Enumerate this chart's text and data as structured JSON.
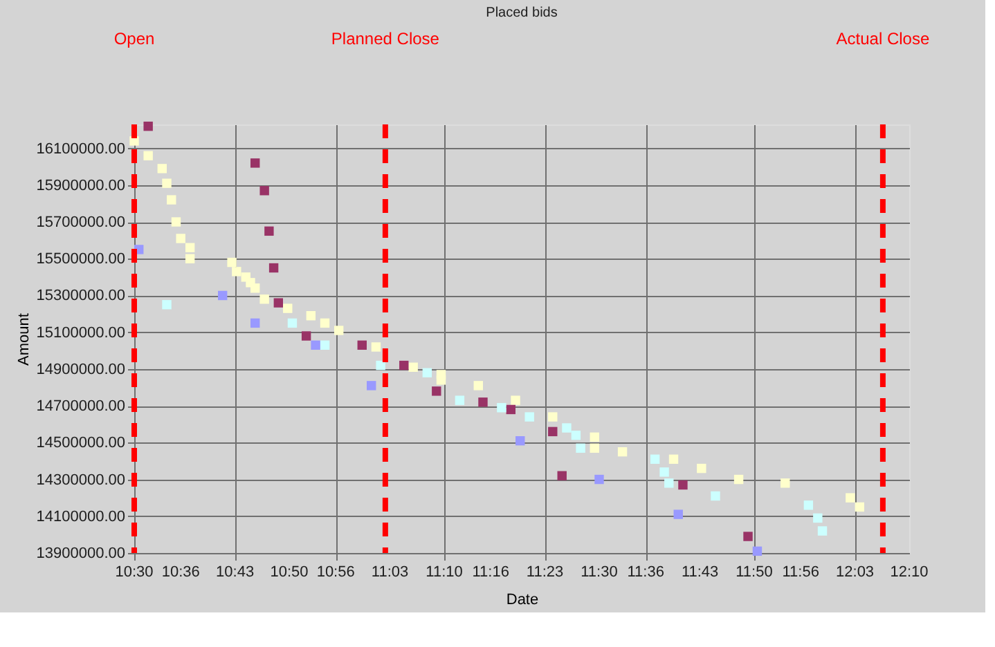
{
  "chart_data": {
    "type": "scatter",
    "title": "Placed bids",
    "xlabel": "Date",
    "ylabel": "Amount",
    "marker": "square",
    "grid": true,
    "legend": false,
    "xlim": [
      10.5,
      12.1667
    ],
    "ylim": [
      13900000,
      16230000
    ],
    "xticks": [
      {
        "value": 10.5,
        "label": "10:30"
      },
      {
        "value": 10.6,
        "label": "10:36"
      },
      {
        "value": 10.7167,
        "label": "10:43"
      },
      {
        "value": 10.8333,
        "label": "10:50"
      },
      {
        "value": 10.9333,
        "label": "10:56"
      },
      {
        "value": 11.05,
        "label": "11:03"
      },
      {
        "value": 11.1667,
        "label": "11:10"
      },
      {
        "value": 11.2667,
        "label": "11:16"
      },
      {
        "value": 11.3833,
        "label": "11:23"
      },
      {
        "value": 11.5,
        "label": "11:30"
      },
      {
        "value": 11.6,
        "label": "11:36"
      },
      {
        "value": 11.7167,
        "label": "11:43"
      },
      {
        "value": 11.8333,
        "label": "11:50"
      },
      {
        "value": 11.9333,
        "label": "11:56"
      },
      {
        "value": 12.05,
        "label": "12:03"
      },
      {
        "value": 12.1667,
        "label": "12:10"
      }
    ],
    "yticks": [
      {
        "value": 13900000,
        "label": "13900000.00"
      },
      {
        "value": 14100000,
        "label": "14100000.00"
      },
      {
        "value": 14300000,
        "label": "14300000.00"
      },
      {
        "value": 14500000,
        "label": "14500000.00"
      },
      {
        "value": 14700000,
        "label": "14700000.00"
      },
      {
        "value": 14900000,
        "label": "14900000.00"
      },
      {
        "value": 15100000,
        "label": "15100000.00"
      },
      {
        "value": 15300000,
        "label": "15300000.00"
      },
      {
        "value": 15500000,
        "label": "15500000.00"
      },
      {
        "value": 15700000,
        "label": "15700000.00"
      },
      {
        "value": 15900000,
        "label": "15900000.00"
      },
      {
        "value": 16100000,
        "label": "16100000.00"
      }
    ],
    "ref_lines": [
      {
        "axis": "x",
        "value": 10.5,
        "label": "Open",
        "color": "#ff0000",
        "line_style": "dashed"
      },
      {
        "axis": "x",
        "value": 11.04,
        "label": "Planned Close",
        "color": "#ff0000",
        "line_style": "dashed"
      },
      {
        "axis": "x",
        "value": 12.11,
        "label": "Actual Close",
        "color": "#ff0000",
        "line_style": "dashed"
      }
    ],
    "series": [
      {
        "color": "#ffffcc",
        "x": [
          10.5,
          10.53,
          10.56,
          10.57,
          10.58,
          10.59,
          10.6,
          10.62,
          10.62,
          10.71,
          10.72,
          10.74,
          10.75,
          10.76,
          10.78,
          10.83,
          10.88,
          10.91,
          10.94,
          11.02,
          11.1,
          11.16,
          11.16,
          11.24,
          11.32,
          11.4,
          11.49,
          11.49,
          11.55,
          11.66,
          11.72,
          11.8,
          11.9,
          12.04,
          12.06
        ],
        "values": [
          16140000,
          16060000,
          15990000,
          15910000,
          15820000,
          15700000,
          15610000,
          15560000,
          15500000,
          15480000,
          15430000,
          15400000,
          15370000,
          15340000,
          15280000,
          15230000,
          15190000,
          15150000,
          15110000,
          15020000,
          14910000,
          14870000,
          14840000,
          14810000,
          14730000,
          14640000,
          14530000,
          14470000,
          14450000,
          14410000,
          14360000,
          14300000,
          14280000,
          14200000,
          14150000
        ]
      },
      {
        "color": "#993366",
        "x": [
          10.53,
          10.76,
          10.78,
          10.79,
          10.8,
          10.81,
          10.87,
          10.99,
          11.08,
          11.15,
          11.25,
          11.31,
          11.4,
          11.42,
          11.68,
          11.82
        ],
        "values": [
          16220000,
          16020000,
          15870000,
          15650000,
          15450000,
          15260000,
          15080000,
          15030000,
          14920000,
          14780000,
          14720000,
          14680000,
          14560000,
          14320000,
          14270000,
          13990000
        ]
      },
      {
        "color": "#ccffff",
        "x": [
          10.57,
          10.84,
          10.91,
          11.03,
          11.13,
          11.2,
          11.29,
          11.35,
          11.43,
          11.45,
          11.46,
          11.62,
          11.64,
          11.65,
          11.75,
          11.95,
          11.97,
          11.98
        ],
        "values": [
          15250000,
          15150000,
          15030000,
          14920000,
          14880000,
          14730000,
          14690000,
          14640000,
          14580000,
          14540000,
          14470000,
          14410000,
          14340000,
          14280000,
          14210000,
          14160000,
          14090000,
          14020000
        ]
      },
      {
        "color": "#9999ff",
        "x": [
          10.51,
          10.69,
          10.76,
          10.89,
          11.01,
          11.33,
          11.5,
          11.67,
          11.84
        ],
        "values": [
          15550000,
          15300000,
          15150000,
          15030000,
          14810000,
          14510000,
          14300000,
          14110000,
          13910000
        ]
      }
    ]
  }
}
